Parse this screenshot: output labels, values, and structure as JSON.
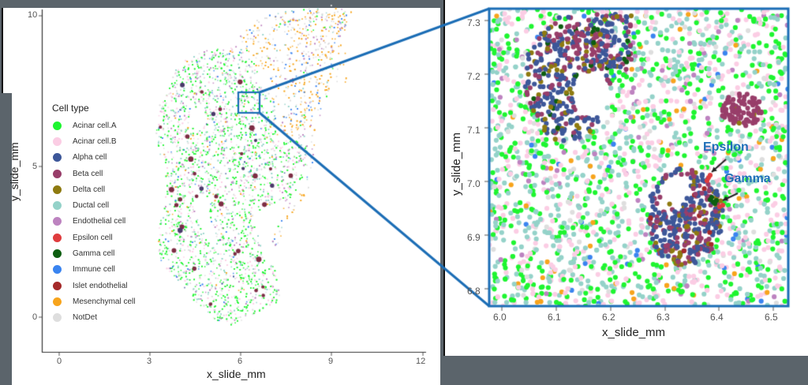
{
  "chart_data": [
    {
      "type": "scatter",
      "title": "",
      "xlabel": "x_slide_mm",
      "ylabel": "y_slide_mm",
      "xlim": [
        -0.5,
        12
      ],
      "ylim": [
        -1,
        10
      ],
      "xticks": [
        "0",
        "3",
        "6",
        "9",
        "12"
      ],
      "yticks": [
        "0",
        "5",
        "10"
      ],
      "grid": false,
      "legend_position": "left-inside",
      "legend_title": "Cell type",
      "description": "Whole-slide spatial map of pancreatic tissue cells colored by cell type; inset box near x=6.0-6.5, y=6.8-7.3"
    },
    {
      "type": "scatter",
      "title": "",
      "xlabel": "x_slide_mm",
      "ylabel": "y_slide_mm",
      "xlim": [
        5.98,
        6.53
      ],
      "ylim": [
        6.78,
        7.33
      ],
      "xticks": [
        "6.0",
        "6.1",
        "6.2",
        "6.3",
        "6.4",
        "6.5"
      ],
      "yticks": [
        "6.8",
        "6.9",
        "7.0",
        "7.1",
        "7.2",
        "7.3"
      ],
      "grid": false,
      "annotations": [
        {
          "text": "Epsilon",
          "x": 6.37,
          "y": 7.01
        },
        {
          "text": "Gamma",
          "x": 6.39,
          "y": 6.96
        }
      ],
      "description": "Zoomed inset showing islet clusters of Alpha, Beta, Delta, Gamma and Epsilon cells"
    }
  ],
  "legend": {
    "title": "Cell type",
    "items": [
      {
        "label": "Acinar cell.A",
        "color": "#1ef530"
      },
      {
        "label": "Acinar cell.B",
        "color": "#fbcde4"
      },
      {
        "label": "Alpha cell",
        "color": "#3d5799"
      },
      {
        "label": "Beta cell",
        "color": "#983e6a"
      },
      {
        "label": "Delta cell",
        "color": "#8e7a10"
      },
      {
        "label": "Ductal cell",
        "color": "#94d2c9"
      },
      {
        "label": "Endothelial cell",
        "color": "#bd83c0"
      },
      {
        "label": "Epsilon cell",
        "color": "#df3c3e"
      },
      {
        "label": "Gamma cell",
        "color": "#0d5e10"
      },
      {
        "label": "Immune cell",
        "color": "#3a84f0"
      },
      {
        "label": "Islet endothelial",
        "color": "#a52a2a"
      },
      {
        "label": "Mesenchymal cell",
        "color": "#f7a41c"
      },
      {
        "label": "NotDet",
        "color": "#dedede"
      }
    ]
  },
  "left_plot": {
    "xlabel": "x_slide_mm",
    "ylabel": "y_slide_mm",
    "xticks": [
      "0",
      "3",
      "6",
      "9",
      "12"
    ],
    "yticks": [
      "0",
      "5",
      "10"
    ]
  },
  "right_plot": {
    "xlabel": "x_slide_mm",
    "ylabel": "y_slide_mm",
    "xticks": [
      "6.0",
      "6.1",
      "6.2",
      "6.3",
      "6.4",
      "6.5"
    ],
    "yticks": [
      "6.8",
      "6.9",
      "7.0",
      "7.1",
      "7.2",
      "7.3"
    ],
    "annotations": {
      "epsilon": "Epsilon",
      "gamma": "Gamma"
    }
  },
  "colors": {
    "zoom_box": "#1b6db5",
    "background": "#5b646b",
    "annotation": "#1f6fb8"
  }
}
